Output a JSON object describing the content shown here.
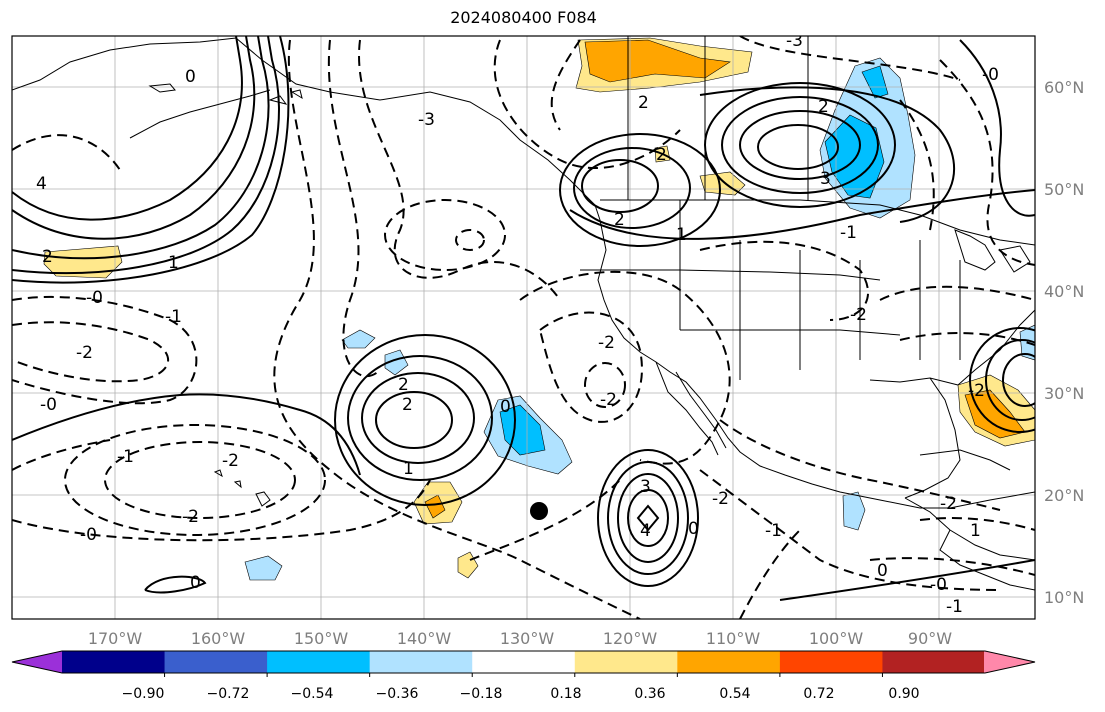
{
  "title": "2024080400 F084",
  "colors": {
    "coast": "#000000",
    "grid": "#b0b0b0",
    "tick_label": "#7f7f7f"
  },
  "lon_labels": [
    "170°W",
    "160°W",
    "150°W",
    "140°W",
    "130°W",
    "120°W",
    "110°W",
    "100°W",
    "90°W"
  ],
  "lat_labels": [
    "60°N",
    "50°N",
    "40°N",
    "30°N",
    "20°N",
    "10°N"
  ],
  "colorbar": {
    "colors": [
      "#9b30d9",
      "#00008b",
      "#3a5fcd",
      "#00bfff",
      "#b0e2ff",
      "#ffffff",
      "#ffe88c",
      "#ffa500",
      "#ff4500",
      "#b22222",
      "#ff88aa"
    ],
    "tick_labels": [
      "−0.90",
      "−0.72",
      "−0.54",
      "−0.36",
      "−0.18",
      "0.18",
      "0.36",
      "0.54",
      "0.72",
      "0.90"
    ]
  },
  "contour_labels": [
    "4",
    "2",
    "1",
    "0",
    "-0",
    "-1",
    "-2",
    "-3",
    "3",
    "2",
    "1",
    "2",
    "2",
    "1",
    "2",
    "0",
    "-2",
    "-2",
    "2",
    "-0",
    "-2",
    "-1",
    "-2",
    "-0",
    "0",
    "3",
    "4",
    "-2",
    "-1",
    "0",
    "-1",
    "0",
    "-2",
    "1",
    "-1",
    "2",
    "-3",
    "-0",
    "-2",
    "-2",
    "-0"
  ]
}
